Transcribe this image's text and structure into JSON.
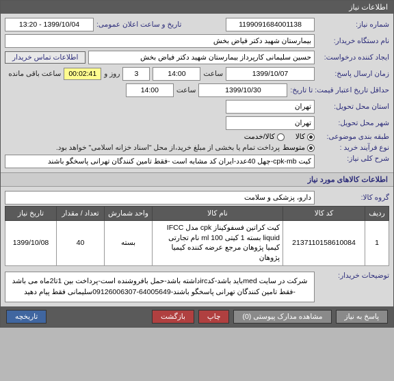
{
  "panel_title": "اطلاعات نیاز",
  "fields": {
    "req_no": {
      "label": "شماره نیاز:",
      "value": "1199091684001138"
    },
    "announce": {
      "label": "تاریخ و ساعت اعلان عمومی:",
      "value": "1399/10/04 - 13:20"
    },
    "device_name": {
      "label": "نام دستگاه خریدار:",
      "value": "بیمارستان شهید دکتر فیاض بخش"
    },
    "creator": {
      "label": "ایجاد کننده درخواست:",
      "value": "حسین سلیمانی کارپرداز بیمارستان شهید دکتر فیاض بخش"
    },
    "contact_btn": "اطلاعات تماس خریدار",
    "deadline": {
      "label": "زمان ارسال پاسخ:",
      "date": "1399/10/07",
      "time_lbl": "ساعت",
      "time": "14:00",
      "days": "3",
      "days_suffix": "روز و",
      "timer": "00:02:41",
      "remain": "ساعت باقی مانده"
    },
    "validity": {
      "label": "حداقل تاریخ اعتبار قیمت: تا تاریخ:",
      "date": "1399/10/30",
      "time_lbl": "ساعت",
      "time": "14:00"
    },
    "delivery_prov": {
      "label": "استان محل تحویل:",
      "value": "تهران"
    },
    "delivery_city": {
      "label": "شهر محل تحویل:",
      "value": "تهران"
    },
    "category": {
      "label": "طبقه بندی موضوعی:",
      "opts": [
        "کالا",
        "کالا/خدمت"
      ],
      "selected": 0
    },
    "process_type": {
      "label": "نوع فرآیند خرید :",
      "opts": [
        "متوسط"
      ],
      "selected": 0,
      "note": "پرداخت تمام یا بخشی از مبلغ خرید،از محل \"اسناد خزانه اسلامی\" خواهد بود."
    },
    "summary": {
      "label": "شرح کلی نیاز:",
      "value": "کیت cpk-mb-چهل 40عدد-ایران کد مشابه است -فقط تامین کنندگان تهرانی پاسخگو باشند"
    }
  },
  "items_section": {
    "title": "اطلاعات کالاهای مورد نیاز",
    "group": {
      "label": "گروه کالا:",
      "value": "دارو، پزشکی و سلامت"
    },
    "table": {
      "headers": [
        "ردیف",
        "کد کالا",
        "نام کالا",
        "واحد شمارش",
        "تعداد / مقدار",
        "تاریخ نیاز"
      ],
      "rows": [
        [
          "1",
          "2137110158610084",
          "کیت کراتین فسفوکیناز cpk مدل IFCC liquid بسته 1 کیتی 100 ml نام تجارتی کیمیا پژوهان مرجع عرضه کننده کیمیا پژوهان",
          "بسته",
          "40",
          "1399/10/08"
        ]
      ]
    }
  },
  "buyer_notes": {
    "label": "توضیحات خریدار:",
    "text": "شرکت در سایت medباید باشد-کدircداشته باشد-حمل بافروشنده است-پرداخت بین 1تا2ماه می باشد -فقط تامین کنندگان تهرانی پاسخگو باشند-64005649-09126006307سلیمانی فقط پیام دهید"
  },
  "footer": {
    "reply": "پاسخ به نیاز",
    "attach": "مشاهده مدارک پیوستی  (0)",
    "print": "چاپ",
    "back": "بازگشت",
    "history": "تاریخچه"
  }
}
